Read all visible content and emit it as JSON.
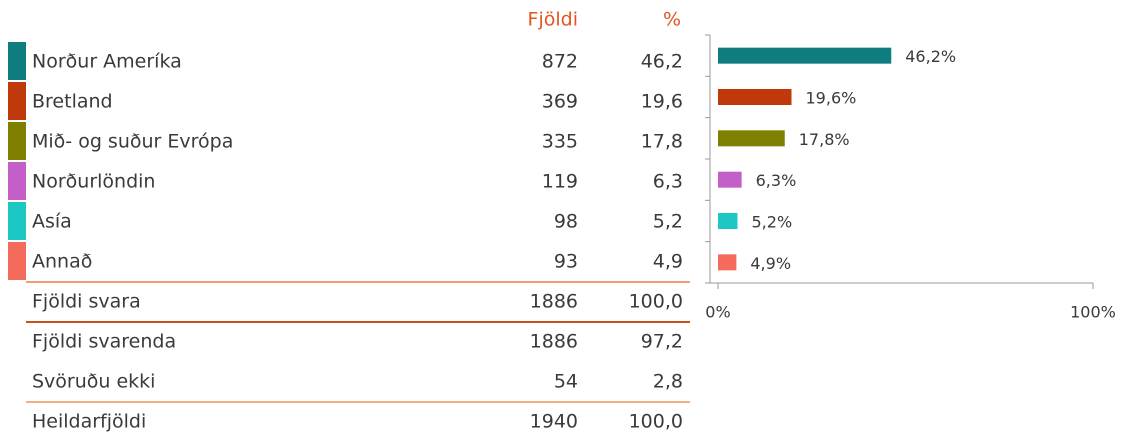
{
  "table": {
    "header": [
      "Fjöldi",
      "%"
    ],
    "rows": [
      [
        "Norður Ameríka",
        "872",
        "46,2"
      ],
      [
        "Bretland",
        "369",
        "19,6"
      ],
      [
        "Mið- og suður Evrópa",
        "335",
        "17,8"
      ],
      [
        "Norðurlöndin",
        "119",
        "6,3"
      ],
      [
        "Asía",
        "98",
        "5,2"
      ],
      [
        "Annað",
        "93",
        "4,9"
      ]
    ],
    "summary": [
      [
        "Fjöldi svara",
        "1886",
        "100,0"
      ],
      [
        "Fjöldi svarenda",
        "1886",
        "97,2"
      ],
      [
        "Svöruðu ekki",
        "54",
        "2,8"
      ],
      [
        "Heildarfjöldi",
        "1940",
        "100,0"
      ]
    ]
  },
  "chart_data": {
    "type": "bar",
    "orientation": "horizontal",
    "values": [
      46.2,
      19.6,
      17.8,
      6.3,
      5.2,
      4.9
    ],
    "value_labels": [
      "46,2%",
      "19,6%",
      "17,8%",
      "6,3%",
      "5,2%",
      "4,9%"
    ],
    "colors": [
      "#0f7c7f",
      "#c0390b",
      "#808000",
      "#c45ec8",
      "#1cc7c4",
      "#f46b5b"
    ],
    "xlim": [
      0,
      100
    ],
    "xticks": [
      {
        "value": 0,
        "label": "0%"
      },
      {
        "value": 100,
        "label": "100%"
      }
    ]
  }
}
